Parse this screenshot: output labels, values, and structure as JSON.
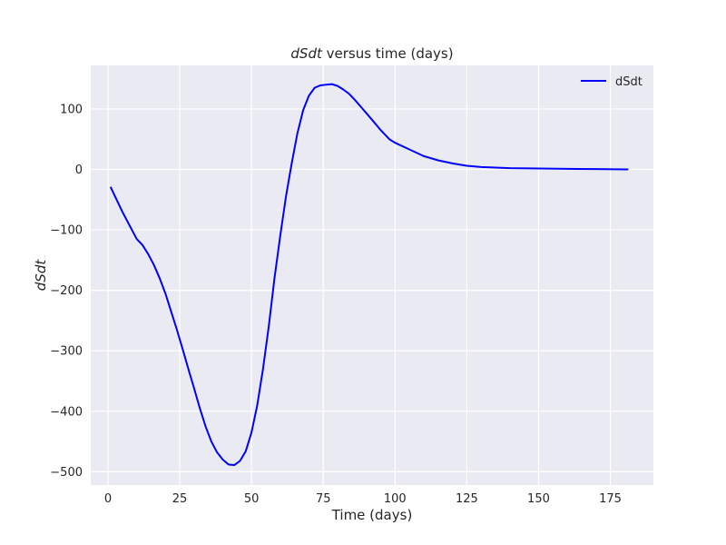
{
  "chart_data": {
    "type": "line",
    "title_var": "dSdt",
    "title_rest": " versus time (days)",
    "xlabel": "Time (days)",
    "ylabel": "dSdt",
    "xlim": [
      -6,
      190
    ],
    "ylim": [
      -522,
      172
    ],
    "xticks": [
      0,
      25,
      50,
      75,
      100,
      125,
      150,
      175
    ],
    "yticks": [
      -500,
      -400,
      -300,
      -200,
      -100,
      0,
      100
    ],
    "grid": true,
    "legend_position": "top-right",
    "colors": {
      "background": "#eaeaf2",
      "grid": "#ffffff",
      "series": "#0000ff"
    },
    "series": [
      {
        "name": "dSdt",
        "x": [
          1,
          3,
          5,
          7,
          9,
          10,
          12,
          14,
          16,
          18,
          20,
          22,
          24,
          26,
          28,
          30,
          32,
          34,
          36,
          38,
          40,
          42,
          44,
          46,
          48,
          50,
          52,
          54,
          56,
          58,
          60,
          62,
          64,
          66,
          68,
          70,
          72,
          74,
          76,
          78,
          80,
          82,
          84,
          86,
          88,
          90,
          92,
          95,
          98,
          100,
          105,
          110,
          115,
          120,
          125,
          130,
          140,
          150,
          160,
          170,
          181
        ],
        "y": [
          -30,
          -50,
          -70,
          -88,
          -106,
          -115,
          -125,
          -140,
          -158,
          -180,
          -205,
          -235,
          -265,
          -297,
          -330,
          -362,
          -395,
          -425,
          -450,
          -468,
          -480,
          -488,
          -489,
          -482,
          -466,
          -435,
          -390,
          -330,
          -260,
          -180,
          -110,
          -45,
          10,
          60,
          98,
          122,
          135,
          139,
          140,
          141,
          138,
          132,
          125,
          115,
          104,
          93,
          82,
          65,
          50,
          44,
          33,
          22,
          15,
          10,
          6,
          4,
          2,
          1.5,
          1,
          0.5,
          0
        ]
      }
    ]
  }
}
